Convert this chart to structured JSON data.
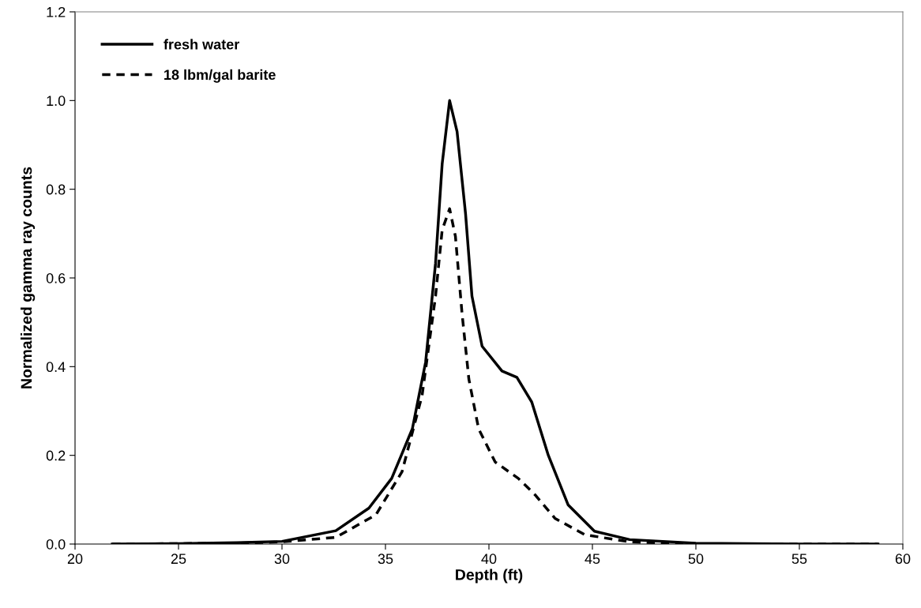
{
  "chart_data": {
    "type": "line",
    "xlabel": "Depth (ft)",
    "ylabel": "Normalized gamma ray counts",
    "xlim": [
      20,
      60
    ],
    "xticks": [
      20,
      25,
      30,
      35,
      40,
      45,
      50,
      55,
      60
    ],
    "ylim": [
      0,
      1.2
    ],
    "yticks": [
      {
        "value": 0,
        "label": "0.0"
      },
      {
        "value": 0.2,
        "label": "0.2"
      },
      {
        "value": 0.4,
        "label": "0.4"
      },
      {
        "value": 0.6,
        "label": "0.6"
      },
      {
        "value": 0.8,
        "label": "0.8"
      },
      {
        "value": 1.0,
        "label": "1.0"
      },
      {
        "value": 1.2,
        "label": "1.2"
      }
    ],
    "grid": false,
    "legend": "top left",
    "marker": "none",
    "series": [
      {
        "name": "fresh water",
        "color": "#000000",
        "line_style": "solid",
        "x": [
          21.8,
          25,
          27.8,
          30,
          32.6,
          34.2,
          35.3,
          36.3,
          36.94,
          37.42,
          37.74,
          38.1,
          38.46,
          38.87,
          39.18,
          39.67,
          40.63,
          41.35,
          42.07,
          42.87,
          43.83,
          45.1,
          46.8,
          50,
          55,
          58.8
        ],
        "values": [
          0,
          0.001,
          0.003,
          0.006,
          0.03,
          0.081,
          0.148,
          0.26,
          0.41,
          0.633,
          0.857,
          1.0,
          0.93,
          0.745,
          0.559,
          0.446,
          0.39,
          0.376,
          0.32,
          0.2,
          0.088,
          0.029,
          0.01,
          0.002,
          0,
          0
        ]
      },
      {
        "name": "18 lbm/gal barite",
        "color": "#000000",
        "line_style": "dashed",
        "x": [
          21.8,
          25,
          27.8,
          30,
          32.6,
          34.54,
          35.8,
          36.77,
          37.42,
          37.74,
          38.1,
          38.38,
          38.7,
          39.03,
          39.5,
          40.3,
          41.42,
          42.23,
          43.19,
          44.63,
          46.8,
          50,
          55,
          58.8
        ],
        "values": [
          0,
          0.001,
          0.002,
          0.005,
          0.015,
          0.066,
          0.163,
          0.335,
          0.559,
          0.708,
          0.756,
          0.694,
          0.52,
          0.372,
          0.26,
          0.185,
          0.148,
          0.111,
          0.058,
          0.021,
          0.005,
          0,
          0,
          0
        ]
      }
    ]
  }
}
